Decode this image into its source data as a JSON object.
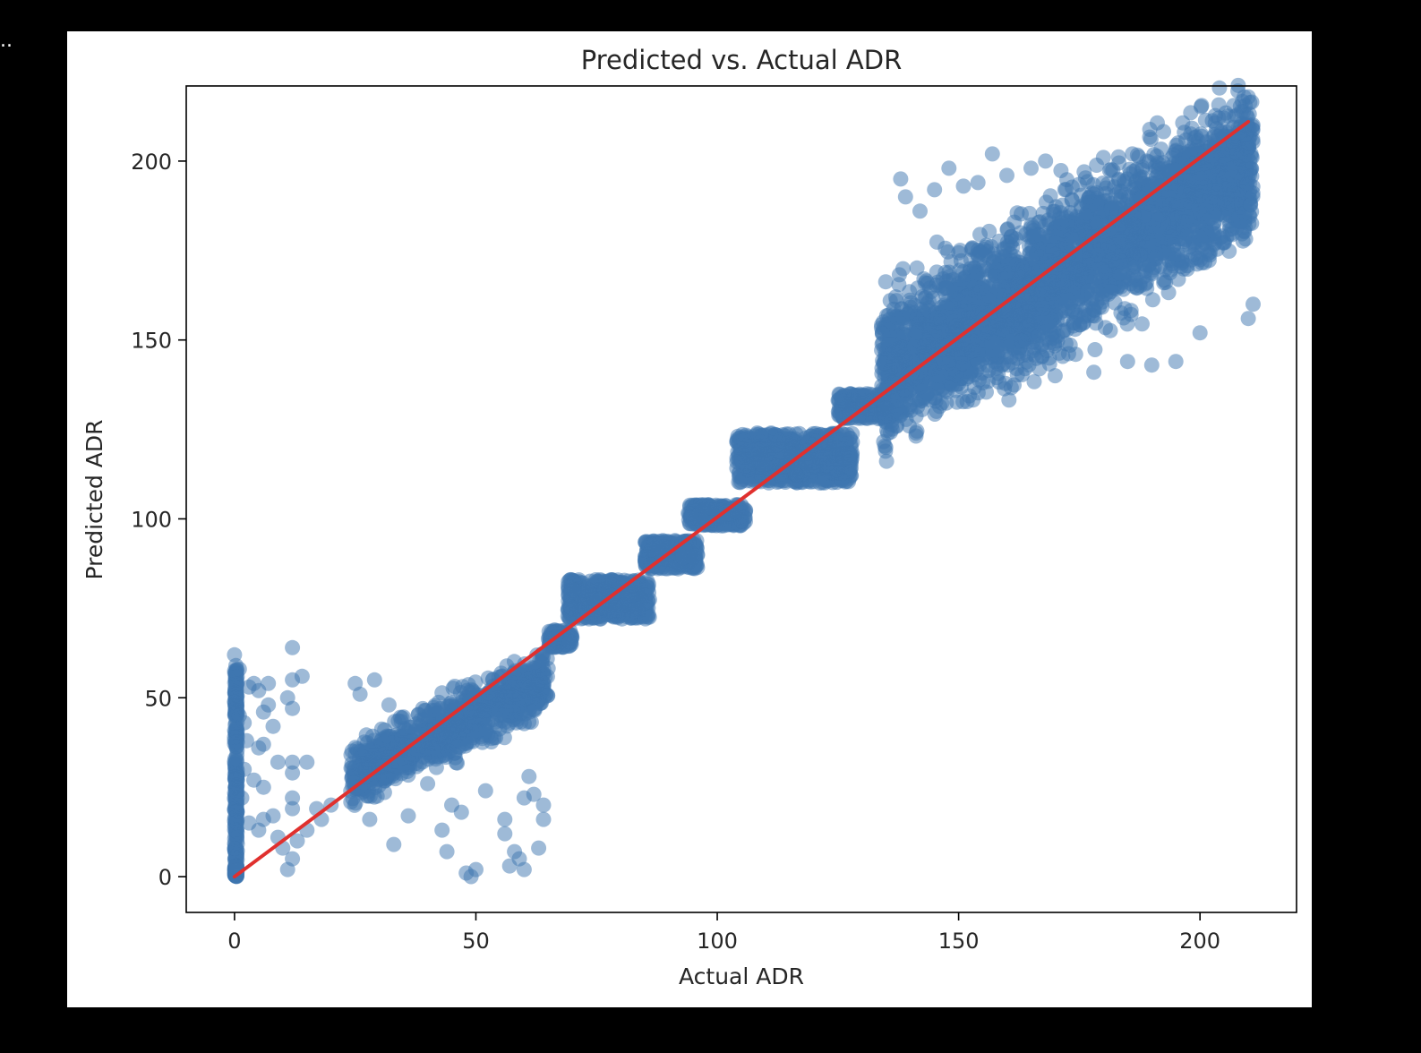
{
  "notebook": {
    "prompt_ellipsis": "..",
    "figure_bg": "#ffffff",
    "page_bg": "#000000"
  },
  "chart_data": {
    "type": "scatter",
    "title": "Predicted vs. Actual ADR",
    "xlabel": "Actual ADR",
    "ylabel": "Predicted ADR",
    "xlim": [
      -10,
      220
    ],
    "ylim": [
      -10,
      221
    ],
    "xticks": [
      0,
      50,
      100,
      150,
      200
    ],
    "yticks": [
      0,
      50,
      100,
      150,
      200
    ],
    "grid": false,
    "point_color": "#3d76b0",
    "point_alpha": 0.5,
    "line_color": "#e0302e",
    "reference_line": {
      "x": [
        0,
        210
      ],
      "y": [
        0,
        211
      ]
    },
    "clusters": [
      {
        "x": [
          0,
          0.6
        ],
        "y": [
          0,
          58
        ],
        "n": 260
      },
      {
        "x": [
          0,
          0.5
        ],
        "y": [
          0,
          3
        ],
        "n": 80
      },
      {
        "x": [
          24,
          65
        ],
        "y": [
          28,
          55
        ],
        "n": 900,
        "diag": true,
        "spread": 6
      },
      {
        "x": [
          65,
          70
        ],
        "y": [
          64,
          69
        ],
        "n": 120
      },
      {
        "x": [
          69,
          86
        ],
        "y": [
          72,
          83
        ],
        "n": 500
      },
      {
        "x": [
          85,
          96
        ],
        "y": [
          86,
          94
        ],
        "n": 300
      },
      {
        "x": [
          94,
          106
        ],
        "y": [
          98,
          104
        ],
        "n": 260
      },
      {
        "x": [
          104,
          128
        ],
        "y": [
          110,
          124
        ],
        "n": 700
      },
      {
        "x": [
          125,
          135
        ],
        "y": [
          128,
          135
        ],
        "n": 200
      },
      {
        "x": [
          134,
          211
        ],
        "y": [
          140,
          200
        ],
        "n": 3200,
        "diag": true,
        "spread": 14
      }
    ],
    "outliers": [
      {
        "x": 0,
        "y": 62
      },
      {
        "x": 0.3,
        "y": 59
      },
      {
        "x": 1,
        "y": 58
      },
      {
        "x": 1,
        "y": 45
      },
      {
        "x": 2,
        "y": 43
      },
      {
        "x": 2.5,
        "y": 38
      },
      {
        "x": 3,
        "y": 53
      },
      {
        "x": 4,
        "y": 54
      },
      {
        "x": 5,
        "y": 52
      },
      {
        "x": 6,
        "y": 46
      },
      {
        "x": 7,
        "y": 48
      },
      {
        "x": 8,
        "y": 42
      },
      {
        "x": 5,
        "y": 36
      },
      {
        "x": 6,
        "y": 37
      },
      {
        "x": 4,
        "y": 27
      },
      {
        "x": 6,
        "y": 25
      },
      {
        "x": 2,
        "y": 30
      },
      {
        "x": 1.5,
        "y": 22
      },
      {
        "x": 3,
        "y": 15
      },
      {
        "x": 5,
        "y": 13
      },
      {
        "x": 6,
        "y": 16
      },
      {
        "x": 8,
        "y": 17
      },
      {
        "x": 9,
        "y": 11
      },
      {
        "x": 10,
        "y": 8
      },
      {
        "x": 11,
        "y": 2
      },
      {
        "x": 12,
        "y": 5
      },
      {
        "x": 12,
        "y": 64
      },
      {
        "x": 14,
        "y": 56
      },
      {
        "x": 12,
        "y": 55
      },
      {
        "x": 12,
        "y": 47
      },
      {
        "x": 11,
        "y": 50
      },
      {
        "x": 12,
        "y": 32
      },
      {
        "x": 15,
        "y": 32
      },
      {
        "x": 12,
        "y": 29
      },
      {
        "x": 12,
        "y": 22
      },
      {
        "x": 12,
        "y": 19
      },
      {
        "x": 13,
        "y": 10
      },
      {
        "x": 15,
        "y": 13
      },
      {
        "x": 18,
        "y": 16
      },
      {
        "x": 17,
        "y": 19
      },
      {
        "x": 20,
        "y": 20
      },
      {
        "x": 9,
        "y": 32
      },
      {
        "x": 7,
        "y": 54
      },
      {
        "x": 25,
        "y": 54
      },
      {
        "x": 26,
        "y": 51
      },
      {
        "x": 29,
        "y": 55
      },
      {
        "x": 32,
        "y": 48
      },
      {
        "x": 28,
        "y": 16
      },
      {
        "x": 33,
        "y": 9
      },
      {
        "x": 36,
        "y": 17
      },
      {
        "x": 43,
        "y": 13
      },
      {
        "x": 44,
        "y": 7
      },
      {
        "x": 45,
        "y": 20
      },
      {
        "x": 47,
        "y": 18
      },
      {
        "x": 48,
        "y": 1
      },
      {
        "x": 49,
        "y": 0
      },
      {
        "x": 50,
        "y": 2
      },
      {
        "x": 52,
        "y": 24
      },
      {
        "x": 56,
        "y": 16
      },
      {
        "x": 56,
        "y": 12
      },
      {
        "x": 57,
        "y": 3
      },
      {
        "x": 58,
        "y": 7
      },
      {
        "x": 59,
        "y": 5
      },
      {
        "x": 60,
        "y": 2
      },
      {
        "x": 60,
        "y": 22
      },
      {
        "x": 62,
        "y": 23
      },
      {
        "x": 63,
        "y": 8
      },
      {
        "x": 64,
        "y": 20
      },
      {
        "x": 64,
        "y": 16
      },
      {
        "x": 61,
        "y": 28
      },
      {
        "x": 40,
        "y": 26
      },
      {
        "x": 139,
        "y": 190
      },
      {
        "x": 138,
        "y": 195
      },
      {
        "x": 142,
        "y": 186
      },
      {
        "x": 145,
        "y": 192
      },
      {
        "x": 148,
        "y": 198
      },
      {
        "x": 151,
        "y": 193
      },
      {
        "x": 154,
        "y": 194
      },
      {
        "x": 157,
        "y": 202
      },
      {
        "x": 160,
        "y": 196
      },
      {
        "x": 165,
        "y": 198
      },
      {
        "x": 168,
        "y": 200
      },
      {
        "x": 172,
        "y": 192
      },
      {
        "x": 176,
        "y": 197
      },
      {
        "x": 180,
        "y": 201
      },
      {
        "x": 186,
        "y": 202
      },
      {
        "x": 189,
        "y": 200
      },
      {
        "x": 195,
        "y": 203
      },
      {
        "x": 205,
        "y": 206
      },
      {
        "x": 208,
        "y": 208
      },
      {
        "x": 155,
        "y": 138
      },
      {
        "x": 162,
        "y": 142
      },
      {
        "x": 170,
        "y": 140
      },
      {
        "x": 178,
        "y": 141
      },
      {
        "x": 185,
        "y": 144
      },
      {
        "x": 190,
        "y": 143
      },
      {
        "x": 195,
        "y": 144
      },
      {
        "x": 200,
        "y": 152
      },
      {
        "x": 210,
        "y": 156
      },
      {
        "x": 211,
        "y": 160
      }
    ]
  }
}
